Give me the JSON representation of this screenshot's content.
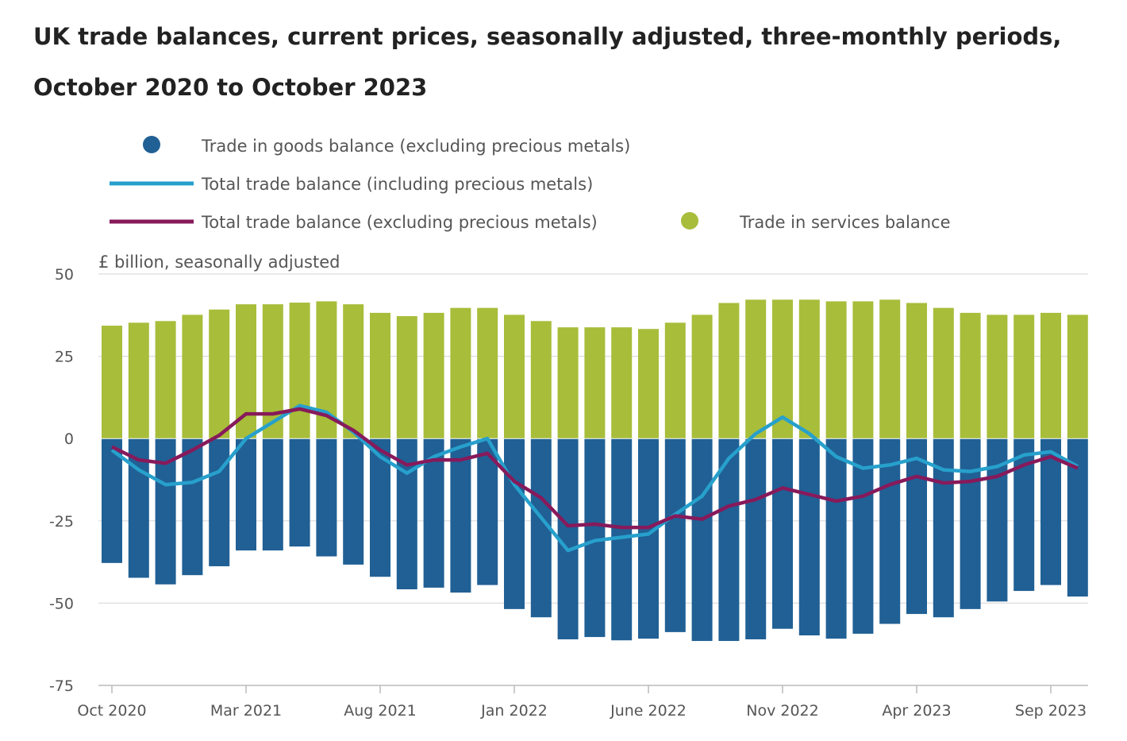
{
  "title": "UK trade balances, current prices, seasonally adjusted, three-monthly periods, October 2020 to October 2023",
  "chart_data": {
    "type": "bar",
    "title": "UK trade balances, current prices, seasonally adjusted, three-monthly periods, October 2020 to October 2023",
    "ylabel": "£ billion, seasonally adjusted",
    "xlabel": "",
    "ylim": [
      -75,
      50
    ],
    "yticks": [
      50,
      25,
      0,
      -25,
      -50,
      -75
    ],
    "grid": true,
    "legend_position": "top",
    "periods": 37,
    "xtick_labels": [
      {
        "label": "Oct 2020",
        "index": 0
      },
      {
        "label": "Mar 2021",
        "index": 5
      },
      {
        "label": "Aug 2021",
        "index": 10
      },
      {
        "label": "Jan 2022",
        "index": 15
      },
      {
        "label": "June 2022",
        "index": 20
      },
      {
        "label": "Nov 2022",
        "index": 25
      },
      {
        "label": "Apr 2023",
        "index": 30
      },
      {
        "label": "Sep 2023",
        "index": 35
      }
    ],
    "series": [
      {
        "name": "Trade in goods balance (excluding precious metals)",
        "kind": "bar",
        "color": "#206095",
        "values": [
          -37.8,
          -42.3,
          -44.3,
          -41.5,
          -38.8,
          -34.0,
          -34.0,
          -32.8,
          -35.8,
          -38.3,
          -42.0,
          -45.8,
          -45.3,
          -46.8,
          -44.5,
          -51.8,
          -54.3,
          -61.0,
          -60.3,
          -61.3,
          -60.8,
          -58.8,
          -61.5,
          -61.5,
          -61.0,
          -57.8,
          -59.8,
          -60.8,
          -59.3,
          -56.3,
          -53.3,
          -54.3,
          -51.8,
          -49.5,
          -46.3,
          -44.5,
          -48.0
        ]
      },
      {
        "name": "Trade in services balance",
        "kind": "bar",
        "color": "#a8bd3a",
        "values": [
          34.3,
          35.2,
          35.7,
          37.6,
          39.2,
          40.8,
          40.8,
          41.3,
          41.7,
          40.8,
          38.2,
          37.2,
          38.2,
          39.7,
          39.7,
          37.6,
          35.7,
          33.8,
          33.8,
          33.8,
          33.3,
          35.2,
          37.6,
          41.2,
          42.2,
          42.2,
          42.2,
          41.7,
          41.7,
          42.2,
          41.2,
          39.7,
          38.2,
          37.6,
          37.6,
          38.2,
          37.6
        ]
      },
      {
        "name": "Total trade balance (including precious metals)",
        "kind": "line",
        "color": "#27a0cc",
        "values": [
          -3.5,
          -9.5,
          -14.0,
          -13.3,
          -10.0,
          0.0,
          5.0,
          10.0,
          8.0,
          2.0,
          -5.5,
          -10.5,
          -5.5,
          -2.5,
          0.0,
          -14.0,
          -24.0,
          -34.0,
          -31.0,
          -30.0,
          -29.0,
          -23.0,
          -17.5,
          -6.0,
          1.5,
          6.5,
          1.5,
          -5.5,
          -9.0,
          -8.0,
          -6.0,
          -9.5,
          -10.0,
          -8.5,
          -5.0,
          -4.0,
          -8.5
        ]
      },
      {
        "name": "Total trade balance (excluding precious metals)",
        "kind": "line",
        "color": "#871a5b",
        "values": [
          -2.5,
          -6.5,
          -7.5,
          -3.5,
          1.0,
          7.5,
          7.5,
          9.0,
          7.0,
          2.5,
          -3.5,
          -8.0,
          -6.5,
          -6.5,
          -4.5,
          -13.0,
          -18.0,
          -26.5,
          -26.0,
          -27.0,
          -27.0,
          -23.5,
          -24.5,
          -20.5,
          -18.5,
          -15.0,
          -17.0,
          -19.0,
          -17.5,
          -14.0,
          -11.5,
          -13.5,
          -13.0,
          -11.5,
          -8.0,
          -5.5,
          -9.0
        ]
      }
    ]
  },
  "legend": [
    {
      "label": "Trade in goods balance (excluding precious metals)",
      "marker": "circle",
      "color": "#206095"
    },
    {
      "label": "Total trade balance (including precious metals)",
      "marker": "line",
      "color": "#27a0cc"
    },
    {
      "label": "Total trade balance (excluding precious metals)",
      "marker": "line",
      "color": "#871a5b"
    },
    {
      "label": "Trade in services balance",
      "marker": "circle",
      "color": "#a8bd3a"
    }
  ]
}
